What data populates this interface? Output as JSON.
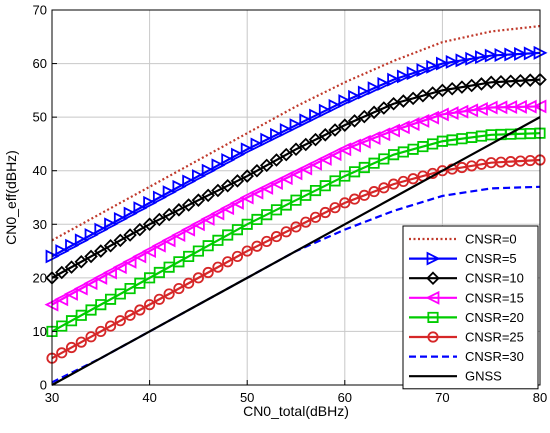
{
  "chart_data": {
    "type": "line",
    "xlabel": "CN0_total(dBHz)",
    "ylabel": "CN0_eff(dBHz)",
    "xlim": [
      30,
      80
    ],
    "ylim": [
      0,
      70
    ],
    "x_ticks": [
      "30",
      "40",
      "50",
      "60",
      "70",
      "80"
    ],
    "y_ticks": [
      "0",
      "10",
      "20",
      "30",
      "40",
      "50",
      "60",
      "70"
    ],
    "grid": true,
    "legend_position": "bottom-right",
    "x": [
      30,
      35,
      40,
      45,
      50,
      55,
      60,
      65,
      70,
      75,
      80
    ],
    "series": [
      {
        "name": "CNSR=0",
        "color": "#c0392b",
        "style": "dotted",
        "marker": "none",
        "values": [
          27,
          32,
          37,
          42,
          47,
          52,
          56.5,
          60.5,
          64,
          66,
          67
        ]
      },
      {
        "name": "CNSR=5",
        "color": "#0000ff",
        "style": "solid",
        "marker": "triangle-right",
        "values": [
          24,
          29,
          34,
          39,
          44,
          48.5,
          53,
          57,
          60,
          61.5,
          62
        ]
      },
      {
        "name": "CNSR=10",
        "color": "#000000",
        "style": "solid",
        "marker": "diamond",
        "values": [
          20,
          25,
          30,
          34.5,
          39,
          44,
          48.5,
          52.5,
          55,
          56.5,
          57
        ]
      },
      {
        "name": "CNSR=15",
        "color": "#ff00ff",
        "style": "solid",
        "marker": "triangle-left",
        "values": [
          15,
          20,
          25,
          30,
          35,
          39.5,
          44,
          47.5,
          50.5,
          51.8,
          52
        ]
      },
      {
        "name": "CNSR=20",
        "color": "#00cc00",
        "style": "solid",
        "marker": "square",
        "values": [
          10,
          15,
          20,
          25,
          30,
          34.5,
          39,
          43,
          45.5,
          46.7,
          47
        ]
      },
      {
        "name": "CNSR=25",
        "color": "#d62728",
        "style": "solid",
        "marker": "circle",
        "values": [
          5,
          10,
          15,
          20,
          25,
          29.5,
          34,
          37.5,
          40,
          41.5,
          42
        ]
      },
      {
        "name": "CNSR=30",
        "color": "#0000ff",
        "style": "dashed",
        "marker": "none",
        "values": [
          0.5,
          5,
          10,
          15,
          20,
          25,
          29,
          32.5,
          35.3,
          36.7,
          37
        ]
      },
      {
        "name": "GNSS",
        "color": "#000000",
        "style": "solid",
        "marker": "none",
        "values": [
          0,
          5,
          10,
          15,
          20,
          25,
          30,
          35,
          40,
          45,
          50
        ]
      }
    ]
  }
}
